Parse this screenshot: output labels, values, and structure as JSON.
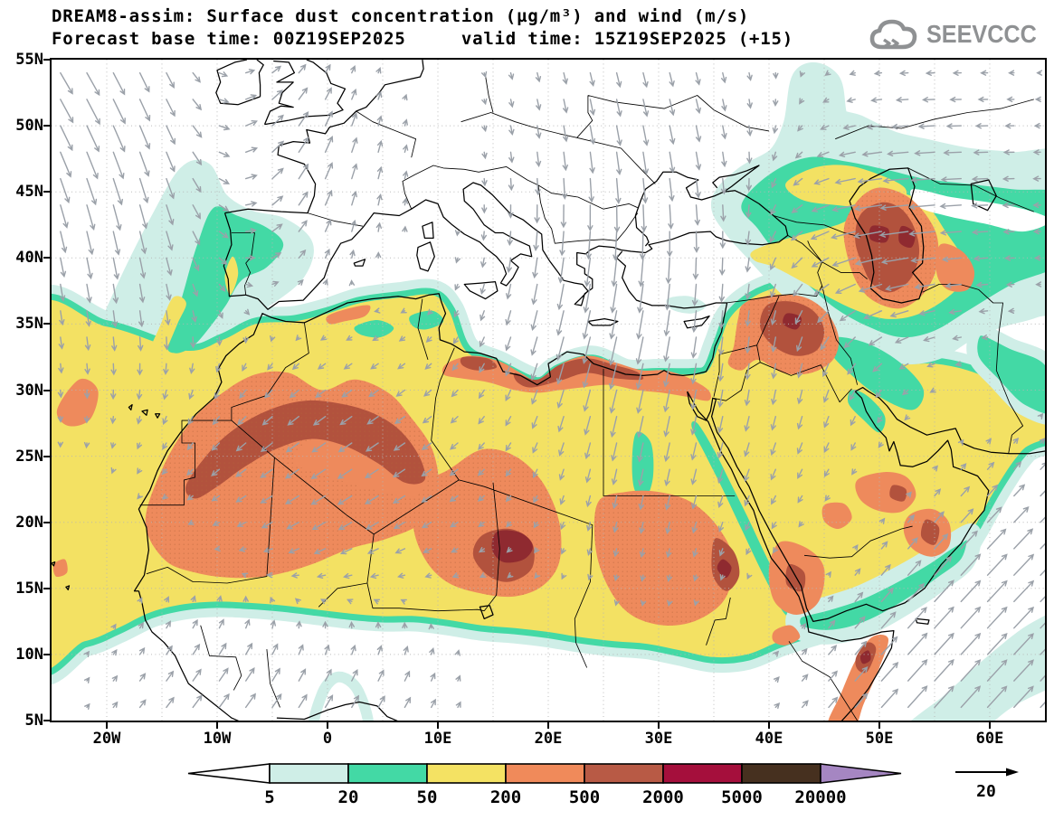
{
  "header": {
    "title": "DREAM8-assim: Surface dust concentration (µg/m³) and wind (m/s)",
    "subtitle": "Forecast base time: 00Z19SEP2025     valid time: 15Z19SEP2025 (+15)",
    "logo_text": "SEEVCCC"
  },
  "model": {
    "name": "DREAM8-assim",
    "variable": "Surface dust concentration",
    "concentration_units": "µg/m³",
    "wind_units": "m/s",
    "forecast_base_time": "00Z19SEP2025",
    "valid_time": "15Z19SEP2025",
    "lead_hours": "+15"
  },
  "map": {
    "lat_tick_labels": [
      "55N",
      "50N",
      "45N",
      "40N",
      "35N",
      "30N",
      "25N",
      "20N",
      "15N",
      "10N",
      "5N"
    ],
    "lon_tick_labels": [
      "20W",
      "10W",
      "0",
      "10E",
      "20E",
      "30E",
      "40E",
      "50E",
      "60E"
    ],
    "grid_interval_deg": 5,
    "frame_color": "#000000",
    "coastline_color": "#000000",
    "wind_arrow_color": "#9ba1a9",
    "graticule_color": "#b5b5b5"
  },
  "legend": {
    "levels": [
      "5",
      "20",
      "50",
      "200",
      "500",
      "2000",
      "5000",
      "20000"
    ],
    "band_colors": [
      "#cfeee7",
      "#43d9a5",
      "#f4e263",
      "#f08a5a",
      "#b85a45",
      "#a50f3c",
      "#46301f"
    ],
    "under_color": "#ffffff",
    "over_color": "#a586c2",
    "outline_color": "#000000",
    "wind_reference": {
      "value": "20"
    }
  },
  "palette": {
    "white": "#ffffff",
    "c1": "#cfeee7",
    "teal": "#43d9a5",
    "yellow": "#f3e163",
    "orange": "#ee8a5c",
    "brick": "#b2523d",
    "maroon": "#8f2a30"
  }
}
